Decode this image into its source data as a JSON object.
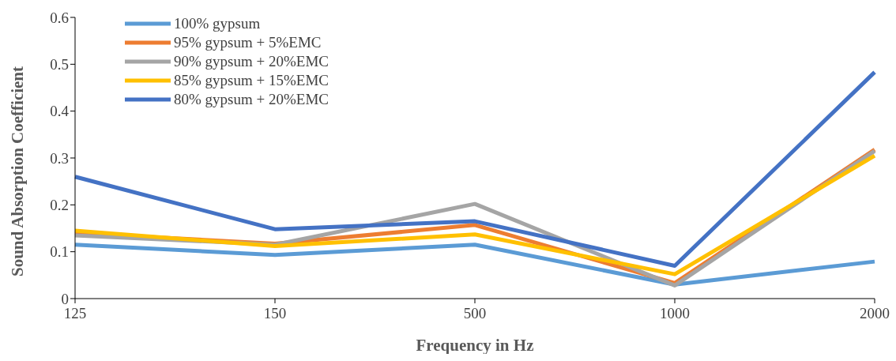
{
  "chart_data": {
    "type": "line",
    "xlabel": "Frequency in Hz",
    "ylabel": "Sound Absorption Coefficient",
    "categories": [
      "125",
      "150",
      "500",
      "1000",
      "2000"
    ],
    "series": [
      {
        "name": "100% gypsum",
        "color": "#5b9bd5",
        "values": [
          0.115,
          0.093,
          0.115,
          0.03,
          0.079
        ]
      },
      {
        "name": "95% gypsum + 5%EMC",
        "color": "#ed7d31",
        "values": [
          0.14,
          0.117,
          0.157,
          0.033,
          0.318
        ]
      },
      {
        "name": "90% gypsum + 20%EMC",
        "color": "#a5a5a5",
        "values": [
          0.135,
          0.115,
          0.202,
          0.028,
          0.315
        ]
      },
      {
        "name": "85% gypsum + 15%EMC",
        "color": "#ffc000",
        "values": [
          0.145,
          0.112,
          0.137,
          0.052,
          0.305
        ]
      },
      {
        "name": "80% gypsum + 20%EMC",
        "color": "#4472c4",
        "values": [
          0.26,
          0.148,
          0.165,
          0.07,
          0.483
        ]
      }
    ],
    "ylim": [
      0,
      0.6
    ],
    "yticks": [
      0,
      0.1,
      0.2,
      0.3,
      0.4,
      0.5,
      0.6
    ],
    "grid": false,
    "legend": "top left",
    "marker": "none",
    "line_style": "solid"
  }
}
